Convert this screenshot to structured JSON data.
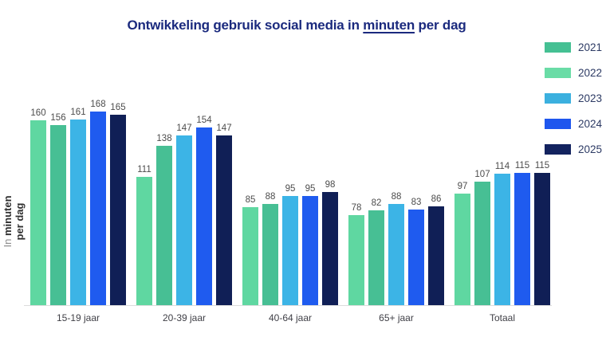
{
  "title": {
    "prefix": "Ontwikkeling gebruik social media in ",
    "underlined_word": "minuten",
    "suffix": " per dag"
  },
  "y_axis_label": {
    "word_light": "In",
    "line1_bold": "minuten",
    "line2_bold": "per dag"
  },
  "chart_data": {
    "type": "bar",
    "title": "Ontwikkeling gebruik social media in minuten per dag",
    "xlabel": "",
    "ylabel": "In minuten per dag",
    "categories": [
      "15-19 jaar",
      "20-39 jaar",
      "40-64 jaar",
      "65+ jaar",
      "Totaal"
    ],
    "series": [
      {
        "name": "2021",
        "values": [
          160,
          111,
          85,
          78,
          97
        ],
        "bar_color": "#5fd7a1",
        "legend_color": "#45c093"
      },
      {
        "name": "2022",
        "values": [
          156,
          138,
          88,
          82,
          107
        ],
        "bar_color": "#47bf94",
        "legend_color": "#6adca6"
      },
      {
        "name": "2023",
        "values": [
          161,
          147,
          95,
          88,
          114
        ],
        "bar_color": "#3cb4e6",
        "legend_color": "#3bb0df"
      },
      {
        "name": "2024",
        "values": [
          168,
          154,
          95,
          83,
          115
        ],
        "bar_color": "#1f5bef",
        "legend_color": "#1e56ee"
      },
      {
        "name": "2025",
        "values": [
          165,
          147,
          98,
          86,
          115
        ],
        "bar_color": "#101f56",
        "legend_color": "#13235f"
      }
    ],
    "ylim": [
      0,
      175
    ],
    "grid": false,
    "legend_position": "right",
    "value_labels": true,
    "value_label_color": "#4c4c4c",
    "title_color": "#1b2a7e",
    "axis_line_color": "#dcdcdc"
  }
}
